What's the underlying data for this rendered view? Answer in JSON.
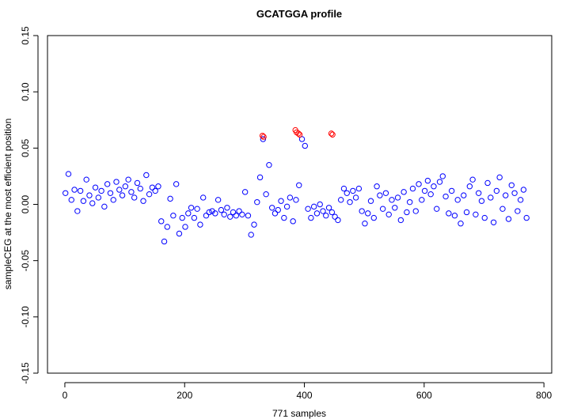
{
  "chart_data": {
    "type": "scatter",
    "title": "GCATGGA profile",
    "x_label": "771 samples",
    "y_label": "sampleCEG at the most efficient position",
    "xlim": [
      -29,
      813
    ],
    "ylim": [
      -0.15,
      0.15
    ],
    "xticks": [
      0,
      200,
      400,
      600,
      800
    ],
    "yticks": [
      -0.15,
      {
        "value": -0.1,
        "label": "-0.10"
      },
      -0.05,
      {
        "value": 0,
        "label": "0.00"
      },
      0.05,
      {
        "value": 0.1,
        "label": "0.10"
      },
      0.15
    ],
    "series": [
      {
        "color": "#0000ff",
        "x": [
          1,
          6,
          11,
          16,
          21,
          26,
          31,
          36,
          41,
          46,
          51,
          56,
          61,
          66,
          71,
          76,
          81,
          86,
          91,
          96,
          101,
          106,
          111,
          116,
          121,
          126,
          131,
          136,
          141,
          146,
          151,
          156,
          161,
          166,
          171,
          176,
          181,
          186,
          191,
          196,
          201,
          206,
          211,
          216,
          221,
          226,
          231,
          236,
          241,
          246,
          251,
          256,
          261,
          266,
          271,
          276,
          281,
          286,
          291,
          296,
          301,
          306,
          311,
          316,
          321,
          326,
          331,
          336,
          341,
          346,
          351,
          356,
          361,
          366,
          371,
          376,
          381,
          386,
          391,
          396,
          401,
          406,
          411,
          416,
          421,
          426,
          431,
          436,
          441,
          446,
          451,
          456,
          461,
          466,
          471,
          476,
          481,
          486,
          491,
          496,
          501,
          506,
          511,
          516,
          521,
          526,
          531,
          536,
          541,
          546,
          551,
          556,
          561,
          566,
          571,
          576,
          581,
          586,
          591,
          596,
          601,
          606,
          611,
          616,
          621,
          626,
          631,
          636,
          641,
          646,
          651,
          656,
          661,
          666,
          671,
          676,
          681,
          686,
          691,
          696,
          701,
          706,
          711,
          716,
          721,
          726,
          731,
          736,
          741,
          746,
          751,
          756,
          761,
          766,
          771
        ],
        "values": [
          0.01,
          0.027,
          0.004,
          0.013,
          -0.006,
          0.012,
          0.003,
          0.022,
          0.008,
          0.001,
          0.015,
          0.006,
          0.012,
          -0.002,
          0.018,
          0.01,
          0.004,
          0.02,
          0.013,
          0.008,
          0.016,
          0.022,
          0.011,
          0.006,
          0.019,
          0.014,
          0.003,
          0.026,
          0.009,
          0.015,
          0.012,
          0.016,
          -0.015,
          -0.033,
          -0.02,
          0.005,
          -0.01,
          0.018,
          -0.026,
          -0.012,
          -0.02,
          -0.008,
          -0.003,
          -0.012,
          -0.004,
          -0.018,
          0.006,
          -0.01,
          -0.007,
          -0.006,
          -0.008,
          0.004,
          -0.005,
          -0.009,
          -0.003,
          -0.011,
          -0.007,
          -0.01,
          -0.006,
          -0.009,
          0.011,
          -0.01,
          -0.027,
          -0.018,
          0.002,
          0.024,
          0.058,
          0.009,
          0.035,
          -0.003,
          -0.008,
          -0.005,
          0.003,
          -0.012,
          -0.002,
          0.006,
          -0.015,
          0.004,
          0.017,
          0.058,
          0.052,
          -0.004,
          -0.012,
          -0.002,
          -0.008,
          0.0,
          -0.006,
          -0.01,
          -0.003,
          -0.007,
          -0.011,
          -0.014,
          0.004,
          0.014,
          0.01,
          0.002,
          0.012,
          0.006,
          0.014,
          -0.006,
          -0.017,
          -0.008,
          0.003,
          -0.012,
          0.016,
          0.008,
          -0.004,
          0.01,
          -0.009,
          0.004,
          -0.003,
          0.006,
          -0.014,
          0.011,
          -0.007,
          0.002,
          0.014,
          -0.006,
          0.018,
          0.004,
          0.012,
          0.021,
          0.009,
          0.016,
          -0.004,
          0.02,
          0.025,
          0.007,
          -0.008,
          0.012,
          -0.01,
          0.004,
          -0.017,
          0.008,
          -0.007,
          0.016,
          0.022,
          -0.009,
          0.01,
          0.003,
          -0.012,
          0.019,
          0.006,
          -0.016,
          0.012,
          0.024,
          -0.004,
          0.008,
          -0.013,
          0.017,
          0.01,
          -0.006,
          0.004,
          0.013,
          -0.012
        ]
      },
      {
        "color": "#ff0000",
        "x": [
          330,
          332,
          385,
          387,
          390,
          392,
          445,
          447
        ],
        "values": [
          0.061,
          0.06,
          0.066,
          0.064,
          0.063,
          0.062,
          0.063,
          0.062
        ]
      }
    ]
  }
}
